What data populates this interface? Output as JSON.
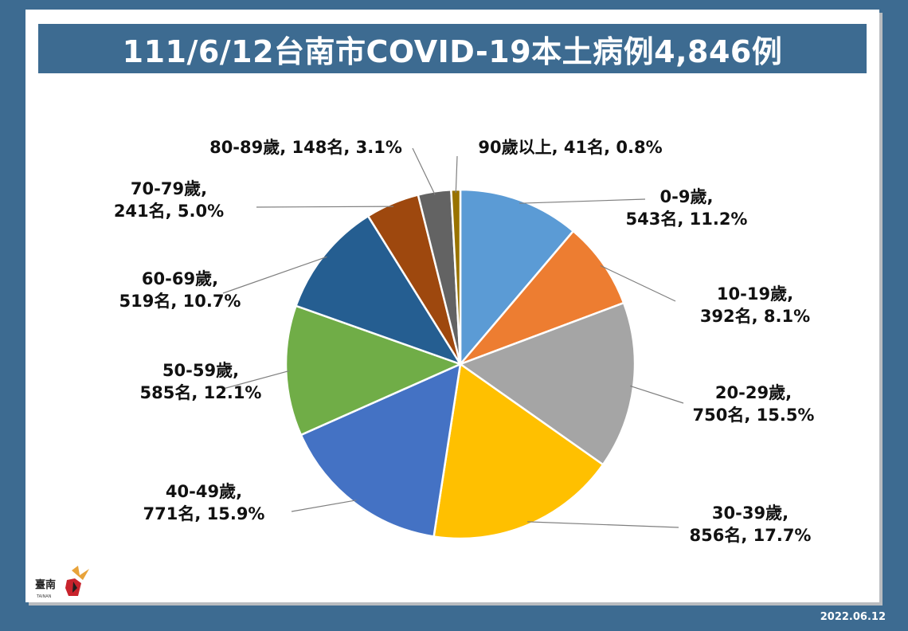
{
  "title": "111/6/12台南市COVID-19本土病例4,846例",
  "date_stamp": "2022.06.12",
  "logo_text": "臺南",
  "chart_data": {
    "type": "pie",
    "title": "111/6/12台南市COVID-19本土病例4,846例",
    "total": 4846,
    "slices": [
      {
        "category": "0-9歲",
        "count": 543,
        "percent": 11.2,
        "color": "#5b9bd5",
        "label_line1": "0-9歲,",
        "label_line2": "543名, 11.2%"
      },
      {
        "category": "10-19歲",
        "count": 392,
        "percent": 8.1,
        "color": "#ed7d31",
        "label_line1": "10-19歲,",
        "label_line2": "392名, 8.1%"
      },
      {
        "category": "20-29歲",
        "count": 750,
        "percent": 15.5,
        "color": "#a5a5a5",
        "label_line1": "20-29歲,",
        "label_line2": "750名, 15.5%"
      },
      {
        "category": "30-39歲",
        "count": 856,
        "percent": 17.7,
        "color": "#ffc000",
        "label_line1": "30-39歲,",
        "label_line2": "856名, 17.7%"
      },
      {
        "category": "40-49歲",
        "count": 771,
        "percent": 15.9,
        "color": "#4472c4",
        "label_line1": "40-49歲,",
        "label_line2": "771名, 15.9%"
      },
      {
        "category": "50-59歲",
        "count": 585,
        "percent": 12.1,
        "color": "#70ad47",
        "label_line1": "50-59歲,",
        "label_line2": "585名, 12.1%"
      },
      {
        "category": "60-69歲",
        "count": 519,
        "percent": 10.7,
        "color": "#255e91",
        "label_line1": "60-69歲,",
        "label_line2": "519名, 10.7%"
      },
      {
        "category": "70-79歲",
        "count": 241,
        "percent": 5.0,
        "color": "#9e480e",
        "label_line1": "70-79歲,",
        "label_line2": "241名, 5.0%"
      },
      {
        "category": "80-89歲",
        "count": 148,
        "percent": 3.1,
        "color": "#636363",
        "label_line1": "80-89歲, 148名, 3.1%",
        "label_line2": ""
      },
      {
        "category": "90歲以上",
        "count": 41,
        "percent": 0.8,
        "color": "#997300",
        "label_line1": "90歲以上, 41名, 0.8%",
        "label_line2": ""
      }
    ]
  }
}
